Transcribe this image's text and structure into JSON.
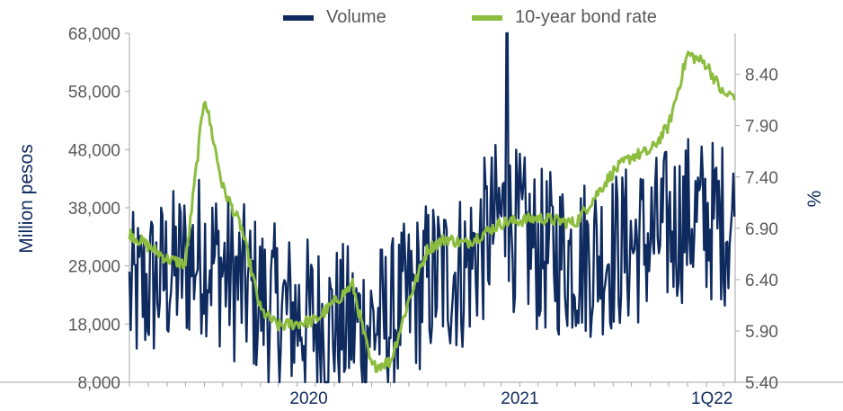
{
  "legend": {
    "volume_label": "Volume",
    "bond_label": "10-year bond rate"
  },
  "colors": {
    "volume": "#0e2a5e",
    "bond": "#8cbd3f",
    "axis": "#a6a6a6",
    "tick_text": "#595959"
  },
  "chart_data": {
    "type": "line",
    "title": "",
    "x_period": "2019-07 to 2022-03 (daily)",
    "x_tick_labels": [
      "2020",
      "2021",
      "1Q22"
    ],
    "y_left": {
      "label": "Million pesos",
      "ylim": [
        8000,
        68000
      ],
      "ticks": [
        "8,000",
        "18,000",
        "28,000",
        "38,000",
        "48,000",
        "58,000",
        "68,000"
      ]
    },
    "y_right": {
      "label": "%",
      "ylim": [
        5.4,
        8.8
      ],
      "ticks": [
        "5.40",
        "5.90",
        "6.40",
        "6.90",
        "7.40",
        "7.90",
        "8.40"
      ]
    },
    "grid": false,
    "legend_position": "top",
    "series": [
      {
        "name": "Volume",
        "axis": "left",
        "anchor_dates": [
          "2019-07",
          "2019-09",
          "2019-11",
          "2020-01",
          "2020-03",
          "2020-05",
          "2020-07",
          "2020-09",
          "2020-11",
          "2021-01",
          "2021-03",
          "2021-05",
          "2021-07",
          "2021-09",
          "2021-11",
          "2022-01",
          "2022-03"
        ],
        "values": [
          22000,
          26000,
          30000,
          24000,
          20000,
          18000,
          17000,
          18000,
          25000,
          27000,
          36000,
          30000,
          29000,
          30000,
          32000,
          36000,
          35000
        ],
        "noise_range": [
          -14000,
          15000
        ],
        "min": 8000,
        "max": 68000,
        "peak_date": "2021-03",
        "peak_value": 68000
      },
      {
        "name": "10-year bond rate",
        "axis": "right",
        "anchor_dates": [
          "2019-07",
          "2019-09",
          "2019-10",
          "2019-11",
          "2019-12",
          "2020-01",
          "2020-02",
          "2020-03",
          "2020-05",
          "2020-07",
          "2020-08",
          "2020-09",
          "2020-10",
          "2020-11",
          "2020-12",
          "2021-01",
          "2021-02",
          "2021-03",
          "2021-05",
          "2021-07",
          "2021-08",
          "2021-09",
          "2021-10",
          "2021-11",
          "2021-12",
          "2022-01",
          "2022-02",
          "2022-03"
        ],
        "values": [
          6.85,
          6.6,
          6.55,
          8.2,
          7.3,
          6.9,
          6.1,
          5.95,
          6.0,
          6.35,
          5.55,
          5.6,
          6.2,
          6.7,
          6.8,
          6.75,
          6.85,
          6.95,
          7.0,
          6.95,
          7.2,
          7.45,
          7.6,
          7.65,
          7.9,
          8.6,
          8.5,
          8.2
        ]
      }
    ]
  }
}
